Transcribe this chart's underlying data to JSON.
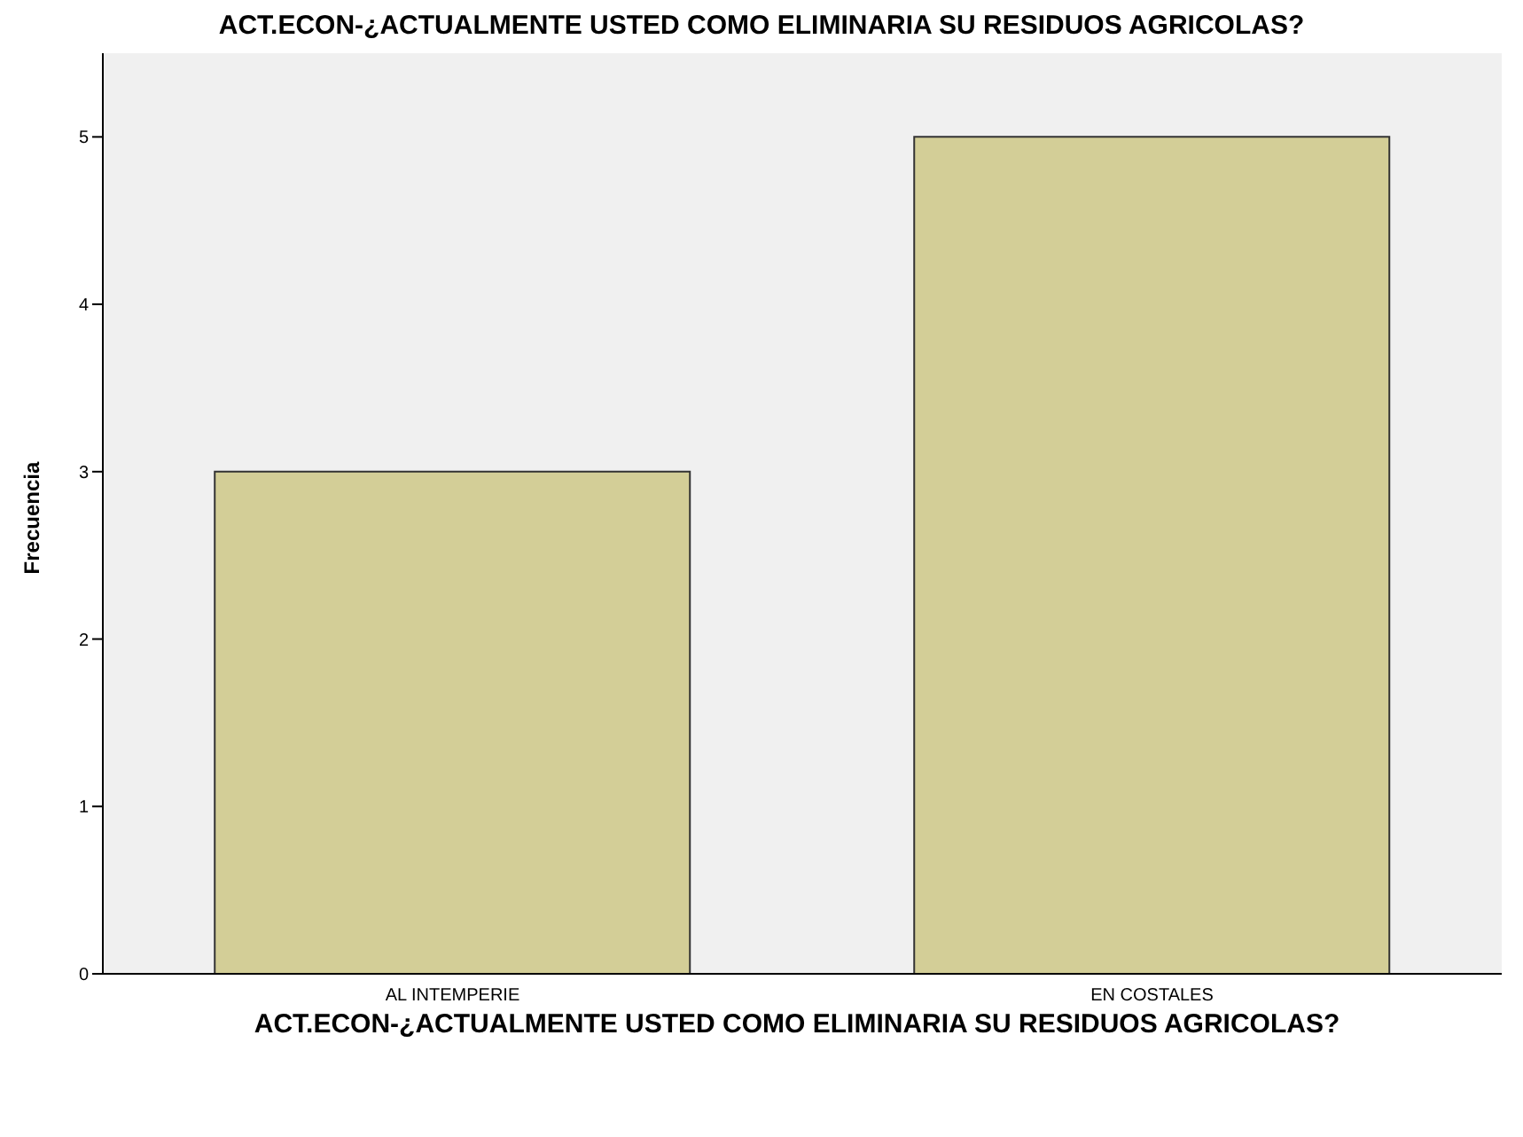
{
  "chart_data": {
    "type": "bar",
    "title": "ACT.ECON-¿ACTUALMENTE USTED COMO ELIMINARIA SU RESIDUOS AGRICOLAS?",
    "xlabel": "ACT.ECON-¿ACTUALMENTE USTED COMO ELIMINARIA SU RESIDUOS AGRICOLAS?",
    "ylabel": "Frecuencia",
    "categories": [
      "AL INTEMPERIE",
      "EN COSTALES"
    ],
    "values": [
      3,
      5
    ],
    "color": "#d3ce97",
    "ylim": [
      0,
      5.5
    ],
    "yticks": [
      0,
      1,
      2,
      3,
      4,
      5
    ],
    "grid": false
  }
}
